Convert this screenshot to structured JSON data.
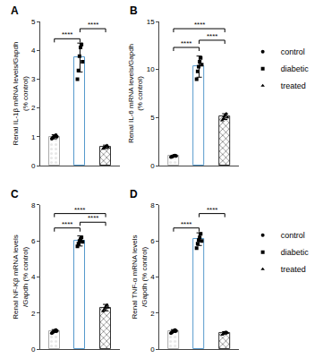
{
  "chart_data": [
    {
      "type": "bar",
      "title": "A",
      "ylabel": "Renal IL-1β mRNA levels/Gapdh\n(% control)",
      "categories": [
        null,
        null,
        null
      ],
      "values": [
        1.0,
        3.75,
        0.65
      ],
      "errors": [
        0.07,
        0.5,
        0.06
      ],
      "colors": [
        "#e8e8e8",
        "#ffffff",
        "#888888"
      ],
      "points": [
        {
          "name": "control",
          "marker": "circle",
          "color": "#000000",
          "values": [
            0.93,
            0.97,
            1.0,
            1.03,
            1.06,
            1.0
          ]
        },
        {
          "name": "diabetic",
          "marker": "square",
          "color": "#000000",
          "values": [
            3.0,
            3.3,
            3.8,
            4.1,
            4.2,
            3.6
          ]
        },
        {
          "name": "treated",
          "marker": "triangle-up",
          "color": "#000000",
          "values": [
            0.58,
            0.62,
            0.65,
            0.68,
            0.7,
            0.63
          ]
        }
      ],
      "annotations": [
        {
          "x1": 0,
          "x2": 1,
          "y": 4.4,
          "label": "****"
        },
        {
          "x1": 1,
          "x2": 2,
          "y": 4.75,
          "label": "****"
        }
      ],
      "ylim": [
        0,
        5
      ],
      "yticks": [
        0,
        1,
        2,
        3,
        4,
        5
      ],
      "grid": false
    },
    {
      "type": "bar",
      "title": "B",
      "ylabel": "Renal IL-6 mRNA levels/Gapdh\n(% control)",
      "categories": [
        null,
        null,
        null
      ],
      "values": [
        1.0,
        10.3,
        5.1
      ],
      "errors": [
        0.08,
        1.1,
        0.3
      ],
      "colors": [
        "#e8e8e8",
        "#ffffff",
        "#888888"
      ],
      "points": [
        {
          "name": "control",
          "marker": "circle",
          "color": "#000000",
          "values": [
            0.88,
            0.92,
            0.98,
            1.02,
            1.06,
            1.0
          ]
        },
        {
          "name": "diabetic",
          "marker": "square",
          "color": "#000000",
          "values": [
            9.0,
            9.8,
            10.3,
            10.8,
            11.2,
            10.5
          ]
        },
        {
          "name": "treated",
          "marker": "triangle-up",
          "color": "#000000",
          "values": [
            4.7,
            4.9,
            5.1,
            5.3,
            5.4,
            5.0
          ]
        }
      ],
      "annotations": [
        {
          "x1": 0,
          "x2": 1,
          "y": 12.3,
          "label": "****"
        },
        {
          "x1": 0,
          "x2": 2,
          "y": 14.25,
          "label": "****"
        },
        {
          "x1": 1,
          "x2": 2,
          "y": 13.05,
          "label": "****"
        }
      ],
      "ylim": [
        0,
        15
      ],
      "yticks": [
        0,
        5,
        10,
        15
      ],
      "grid": false,
      "legend": "right"
    },
    {
      "type": "bar",
      "title": "C",
      "ylabel": "Renal NF-Kβ mRNA levels\n/Gapdh (% control)",
      "categories": [
        null,
        null,
        null
      ],
      "values": [
        1.0,
        6.0,
        2.3
      ],
      "errors": [
        0.08,
        0.28,
        0.18
      ],
      "colors": [
        "#e8e8e8",
        "#ffffff",
        "#888888"
      ],
      "points": [
        {
          "name": "control",
          "marker": "circle",
          "color": "#000000",
          "values": [
            0.88,
            0.93,
            0.98,
            1.02,
            1.06,
            1.0
          ]
        },
        {
          "name": "diabetic",
          "marker": "square",
          "color": "#000000",
          "values": [
            5.7,
            5.85,
            6.0,
            6.1,
            6.2,
            5.95
          ]
        },
        {
          "name": "treated",
          "marker": "triangle-up",
          "color": "#000000",
          "values": [
            2.1,
            2.2,
            2.3,
            2.4,
            2.45,
            2.3
          ]
        }
      ],
      "annotations": [
        {
          "x1": 0,
          "x2": 1,
          "y": 6.72,
          "label": "****"
        },
        {
          "x1": 0,
          "x2": 2,
          "y": 7.52,
          "label": "****"
        },
        {
          "x1": 1,
          "x2": 2,
          "y": 7.04,
          "label": "****"
        }
      ],
      "ylim": [
        0,
        8
      ],
      "yticks": [
        0,
        2,
        4,
        6,
        8
      ],
      "grid": false
    },
    {
      "type": "bar",
      "title": "D",
      "ylabel": "Renal TNF-α mRNA levels\n/Gapdh (% control)",
      "categories": [
        null,
        null,
        null
      ],
      "values": [
        1.0,
        6.1,
        0.9
      ],
      "errors": [
        0.08,
        0.35,
        0.07
      ],
      "colors": [
        "#e8e8e8",
        "#ffffff",
        "#888888"
      ],
      "points": [
        {
          "name": "control",
          "marker": "circle",
          "color": "#000000",
          "values": [
            0.88,
            0.93,
            0.98,
            1.02,
            1.06,
            1.0
          ]
        },
        {
          "name": "diabetic",
          "marker": "square",
          "color": "#000000",
          "values": [
            5.6,
            5.85,
            6.05,
            6.2,
            6.4,
            6.0
          ]
        },
        {
          "name": "treated",
          "marker": "triangle-up",
          "color": "#000000",
          "values": [
            0.8,
            0.85,
            0.9,
            0.93,
            0.95,
            0.9
          ]
        }
      ],
      "annotations": [
        {
          "x1": 0,
          "x2": 1,
          "y": 6.72,
          "label": "****"
        },
        {
          "x1": 1,
          "x2": 2,
          "y": 7.52,
          "label": "****"
        }
      ],
      "ylim": [
        0,
        8
      ],
      "yticks": [
        0,
        2,
        4,
        6,
        8
      ],
      "grid": false,
      "legend": "right"
    }
  ]
}
